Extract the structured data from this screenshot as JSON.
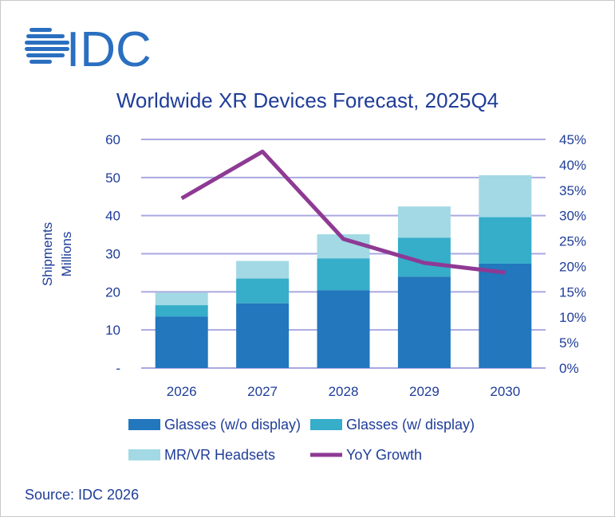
{
  "logo_text": "IDC",
  "colors": {
    "glasses_no_display": "#2277bd",
    "glasses_display": "#36adc9",
    "headsets": "#a2d9e4",
    "yoy": "#8e3a94",
    "grid": "#aaa8e0",
    "text": "#1f3d99"
  },
  "source": "Source: IDC 2026",
  "chart_data": {
    "type": "bar",
    "stacked": true,
    "title": "Worldwide XR Devices Forecast, 2025Q4",
    "categories": [
      "2026",
      "2027",
      "2028",
      "2029",
      "2030"
    ],
    "ylabel": "Shipments\nMillions",
    "ylabel_lines": [
      "Shipments",
      "Millions"
    ],
    "ylim": [
      0,
      60
    ],
    "y_ticks": [
      "-",
      "10",
      "20",
      "30",
      "40",
      "50",
      "60"
    ],
    "y2lim": [
      0,
      45
    ],
    "y2_ticks": [
      "0%",
      "5%",
      "10%",
      "15%",
      "20%",
      "25%",
      "30%",
      "35%",
      "40%",
      "45%"
    ],
    "grid": true,
    "legend_position": "bottom",
    "series": [
      {
        "name": "Glasses (w/o display)",
        "type": "bar",
        "values": [
          13.5,
          17.0,
          20.4,
          24.0,
          27.4
        ]
      },
      {
        "name": "Glasses (w/ display)",
        "type": "bar",
        "values": [
          3.0,
          6.5,
          8.4,
          10.2,
          12.2
        ]
      },
      {
        "name": "MR/VR Headsets",
        "type": "bar",
        "values": [
          3.3,
          4.6,
          6.3,
          8.2,
          11.0
        ]
      },
      {
        "name": "YoY Growth",
        "type": "line",
        "axis": "right",
        "values": [
          33.4,
          42.6,
          25.4,
          20.7,
          18.8
        ]
      }
    ]
  }
}
